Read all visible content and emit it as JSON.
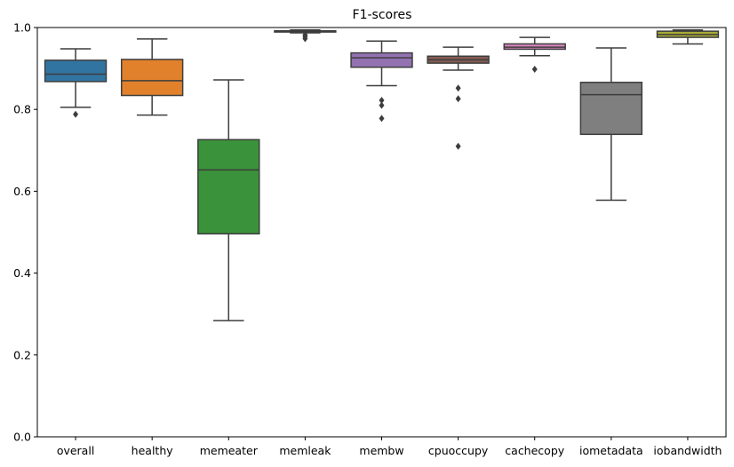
{
  "chart_data": {
    "type": "box",
    "title": "F1-scores",
    "xlabel": "",
    "ylabel": "",
    "ylim": [
      0.0,
      1.0
    ],
    "yticks": [
      "0.0",
      "0.2",
      "0.4",
      "0.6",
      "0.8",
      "1.0"
    ],
    "grid": false,
    "categories": [
      "overall",
      "healthy",
      "memeater",
      "memleak",
      "membw",
      "cpuoccupy",
      "cachecopy",
      "iometadata",
      "iobandwidth"
    ],
    "boxes": [
      {
        "category": "overall",
        "color": "#3274a1",
        "whisker_low": 0.805,
        "q1": 0.868,
        "median": 0.886,
        "q3": 0.92,
        "whisker_high": 0.948,
        "outliers": [
          0.788
        ]
      },
      {
        "category": "healthy",
        "color": "#e1812c",
        "whisker_low": 0.786,
        "q1": 0.834,
        "median": 0.87,
        "q3": 0.922,
        "whisker_high": 0.972,
        "outliers": []
      },
      {
        "category": "memeater",
        "color": "#3a923a",
        "whisker_low": 0.284,
        "q1": 0.496,
        "median": 0.652,
        "q3": 0.726,
        "whisker_high": 0.872,
        "outliers": []
      },
      {
        "category": "memleak",
        "color": "#c03d3e",
        "whisker_low": 0.987,
        "q1": 0.989,
        "median": 0.991,
        "q3": 0.992,
        "whisker_high": 0.994,
        "outliers": [
          0.973,
          0.978,
          0.982
        ]
      },
      {
        "category": "membw",
        "color": "#9372b2",
        "whisker_low": 0.858,
        "q1": 0.903,
        "median": 0.926,
        "q3": 0.938,
        "whisker_high": 0.967,
        "outliers": [
          0.822,
          0.81,
          0.778
        ]
      },
      {
        "category": "cpuoccupy",
        "color": "#845b53",
        "whisker_low": 0.896,
        "q1": 0.913,
        "median": 0.921,
        "q3": 0.93,
        "whisker_high": 0.952,
        "outliers": [
          0.852,
          0.826,
          0.71
        ]
      },
      {
        "category": "cachecopy",
        "color": "#d684bd",
        "whisker_low": 0.931,
        "q1": 0.947,
        "median": 0.952,
        "q3": 0.96,
        "whisker_high": 0.976,
        "outliers": [
          0.898
        ]
      },
      {
        "category": "iometadata",
        "color": "#7f7f7f",
        "whisker_low": 0.578,
        "q1": 0.739,
        "median": 0.836,
        "q3": 0.866,
        "whisker_high": 0.95,
        "outliers": []
      },
      {
        "category": "iobandwidth",
        "color": "#a9aa35",
        "whisker_low": 0.96,
        "q1": 0.976,
        "median": 0.983,
        "q3": 0.991,
        "whisker_high": 0.994,
        "outliers": []
      }
    ]
  }
}
